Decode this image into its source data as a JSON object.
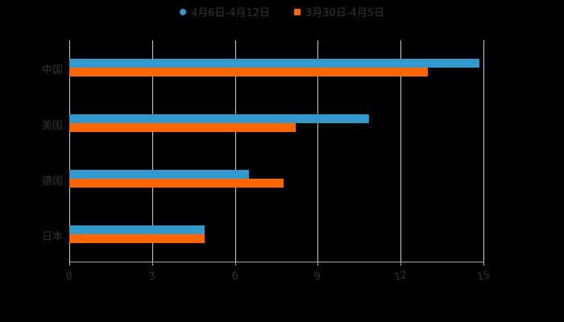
{
  "legend": [
    {
      "label": "4月6日-4月12日",
      "color": "#3399CC",
      "shape": "circle"
    },
    {
      "label": "3月30日-4月5日",
      "color": "#FF6600",
      "shape": "square"
    }
  ],
  "categories": [
    "中国",
    "美国",
    "德国",
    "日本"
  ],
  "ticks": [
    "0",
    "3",
    "6",
    "9",
    "12",
    "15"
  ],
  "chart_data": {
    "type": "bar",
    "orientation": "horizontal",
    "title": "",
    "categories": [
      "中国",
      "美国",
      "德国",
      "日本"
    ],
    "series": [
      {
        "name": "4月6日-4月12日",
        "color": "#3399CC",
        "values": [
          14.85,
          10.85,
          6.5,
          4.9
        ]
      },
      {
        "name": "3月30日-4月5日",
        "color": "#FF6600",
        "values": [
          13.0,
          8.2,
          7.75,
          4.9
        ]
      }
    ],
    "xlim": [
      0,
      15
    ],
    "xticks": [
      0,
      3,
      6,
      9,
      12,
      15
    ],
    "grid": true,
    "legend_position": "top"
  }
}
